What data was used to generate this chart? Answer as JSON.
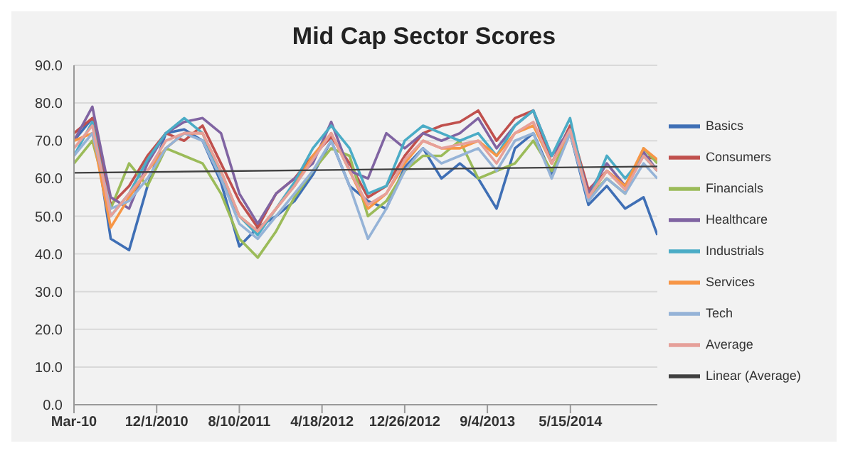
{
  "chart_data": {
    "type": "line",
    "title": "Mid Cap Sector Scores",
    "x": [
      "2010-03-24",
      "2010-05-19",
      "2010-07-14",
      "2010-09-08",
      "2010-11-03",
      "2010-12-29",
      "2011-02-23",
      "2011-04-20",
      "2011-06-15",
      "2011-08-10",
      "2011-10-05",
      "2011-11-30",
      "2012-01-25",
      "2012-03-21",
      "2012-05-16",
      "2012-07-11",
      "2012-09-05",
      "2012-10-31",
      "2012-12-26",
      "2013-02-20",
      "2013-04-17",
      "2013-06-12",
      "2013-08-07",
      "2013-10-02",
      "2013-11-27",
      "2014-01-22",
      "2014-03-19",
      "2014-05-14",
      "2014-07-09",
      "2014-09-03",
      "2014-10-29",
      "2014-12-24",
      "2015-02-04"
    ],
    "series": [
      {
        "name": "Basics",
        "color": "#3f6fb5",
        "values": [
          70,
          76,
          44,
          41,
          58,
          72,
          73,
          70,
          59,
          42,
          47,
          50,
          54,
          61,
          70,
          58,
          54,
          52,
          63,
          68,
          60,
          64,
          60,
          52,
          68,
          72,
          61,
          72,
          53,
          58,
          52,
          55,
          45
        ]
      },
      {
        "name": "Consumers",
        "color": "#c0504d",
        "values": [
          72,
          76,
          53,
          58,
          66,
          72,
          70,
          74,
          64,
          54,
          47,
          56,
          60,
          66,
          71,
          64,
          55,
          58,
          66,
          72,
          74,
          75,
          78,
          70,
          76,
          78,
          64,
          74,
          57,
          62,
          58,
          66,
          65
        ]
      },
      {
        "name": "Financials",
        "color": "#9bbb59",
        "values": [
          64,
          70,
          52,
          64,
          58,
          68,
          66,
          64,
          56,
          44,
          39,
          46,
          55,
          62,
          68,
          66,
          50,
          54,
          62,
          66,
          66,
          70,
          60,
          62,
          64,
          70,
          62,
          72,
          55,
          60,
          56,
          68,
          64
        ]
      },
      {
        "name": "Healthcare",
        "color": "#8064a2",
        "values": [
          70,
          79,
          55,
          52,
          64,
          72,
          75,
          76,
          72,
          56,
          48,
          56,
          60,
          64,
          75,
          62,
          60,
          72,
          68,
          72,
          70,
          72,
          76,
          68,
          74,
          78,
          66,
          73,
          56,
          64,
          58,
          67,
          62
        ]
      },
      {
        "name": "Industrials",
        "color": "#4bacc6",
        "values": [
          66,
          75,
          50,
          56,
          65,
          72,
          76,
          72,
          60,
          50,
          45,
          52,
          59,
          68,
          74,
          68,
          56,
          58,
          70,
          74,
          72,
          70,
          72,
          66,
          74,
          78,
          66,
          76,
          54,
          66,
          60,
          66,
          62
        ]
      },
      {
        "name": "Services",
        "color": "#f79646",
        "values": [
          70,
          72,
          47,
          55,
          62,
          68,
          72,
          72,
          62,
          50,
          46,
          52,
          58,
          66,
          72,
          62,
          52,
          56,
          64,
          70,
          68,
          68,
          70,
          66,
          72,
          74,
          64,
          72,
          55,
          62,
          58,
          68,
          65
        ]
      },
      {
        "name": "Tech",
        "color": "#95b3d7",
        "values": [
          66,
          72,
          52,
          54,
          60,
          68,
          72,
          70,
          60,
          48,
          44,
          50,
          56,
          62,
          70,
          58,
          44,
          52,
          62,
          68,
          64,
          66,
          68,
          62,
          70,
          72,
          60,
          72,
          54,
          60,
          56,
          64,
          60
        ]
      },
      {
        "name": "Average",
        "color": "#e6a09a",
        "values": [
          68,
          74,
          50,
          56,
          62,
          70,
          72,
          72,
          62,
          50,
          46,
          52,
          58,
          65,
          72,
          62,
          53,
          56,
          65,
          70,
          68,
          69,
          70,
          64,
          72,
          75,
          64,
          73,
          55,
          62,
          57,
          66,
          62
        ]
      },
      {
        "name": "Linear (Average)",
        "type": "line",
        "color": "#404040",
        "x": [
          "2010-03-24",
          "2015-02-04"
        ],
        "values": [
          61.5,
          63.2
        ]
      }
    ],
    "xlim": [
      "2010-03-24",
      "2015-02-04"
    ],
    "xticks": [
      {
        "value": "2010-03-24",
        "label": "Mar-10"
      },
      {
        "value": "2010-12-01",
        "label": "12/1/2010"
      },
      {
        "value": "2011-08-10",
        "label": "8/10/2011"
      },
      {
        "value": "2012-04-18",
        "label": "4/18/2012"
      },
      {
        "value": "2012-12-26",
        "label": "12/26/2012"
      },
      {
        "value": "2013-09-04",
        "label": "9/4/2013"
      },
      {
        "value": "2014-05-15",
        "label": "5/15/2014"
      }
    ],
    "ylim": [
      0,
      90
    ],
    "yticks": [
      {
        "value": 0,
        "label": "0.0"
      },
      {
        "value": 10,
        "label": "10.0"
      },
      {
        "value": 20,
        "label": "20.0"
      },
      {
        "value": 30,
        "label": "30.0"
      },
      {
        "value": 40,
        "label": "40.0"
      },
      {
        "value": 50,
        "label": "50.0"
      },
      {
        "value": 60,
        "label": "60.0"
      },
      {
        "value": 70,
        "label": "70.0"
      },
      {
        "value": 80,
        "label": "80.0"
      },
      {
        "value": 90,
        "label": "90.0"
      }
    ],
    "grid": "y",
    "legend": "right",
    "marker": "none",
    "line_style": "solid"
  }
}
